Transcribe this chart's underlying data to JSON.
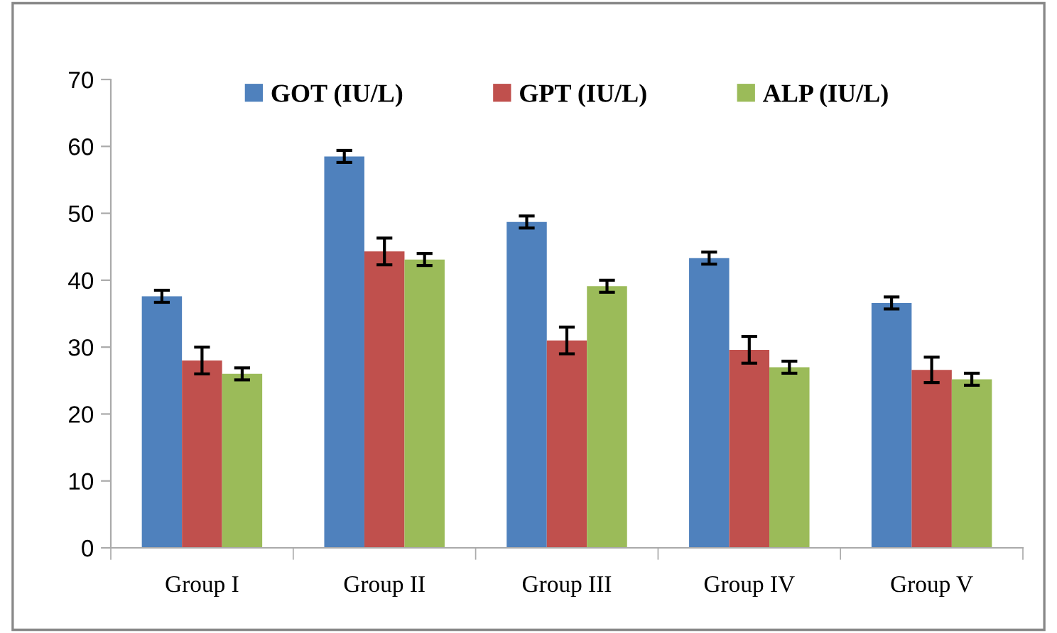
{
  "chart_data": {
    "type": "bar",
    "categories": [
      "Group I",
      "Group II",
      "Group III",
      "Group IV",
      "Group V"
    ],
    "series": [
      {
        "name": "GOT (IU/L)",
        "color": "#4f81bd",
        "values": [
          37.6,
          58.5,
          48.7,
          43.3,
          36.6
        ],
        "errors": [
          0.9,
          0.9,
          0.9,
          0.9,
          0.9
        ]
      },
      {
        "name": "GPT (IU/L)",
        "color": "#c0504d",
        "values": [
          28,
          44.3,
          31,
          29.6,
          26.6
        ],
        "errors": [
          2,
          2,
          2,
          2,
          1.9
        ]
      },
      {
        "name": "ALP (IU/L)",
        "color": "#9bbb59",
        "values": [
          26,
          43.1,
          39.1,
          27,
          25.2
        ],
        "errors": [
          0.9,
          0.9,
          0.9,
          0.9,
          0.9
        ]
      }
    ],
    "ylim": [
      0,
      70
    ],
    "yticks": [
      0,
      10,
      20,
      30,
      40,
      50,
      60,
      70
    ],
    "grid": false,
    "legend": "top"
  }
}
